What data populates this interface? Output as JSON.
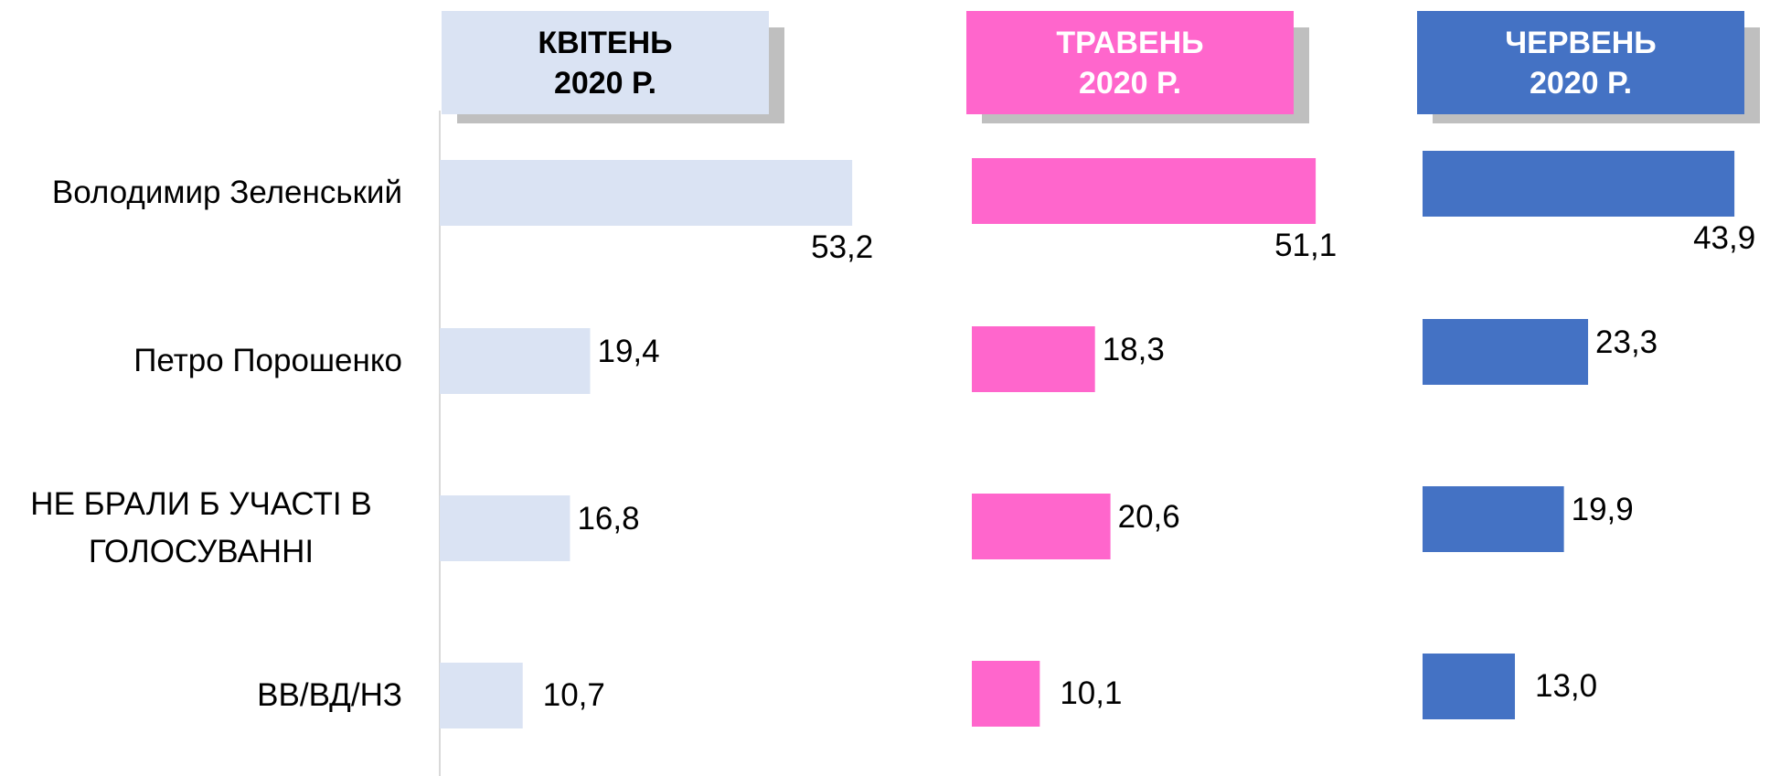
{
  "chart_data": {
    "type": "bar",
    "categories": [
      "Володимир Зеленський",
      "Петро Порошенко",
      "НЕ БРАЛИ Б УЧАСТІ В ГОЛОСУВАННІ",
      "ВВ/ВД/НЗ"
    ],
    "series": [
      {
        "name": "КВІТЕНЬ 2020 Р.",
        "color": "#dae3f3",
        "values": [
          53.2,
          19.4,
          16.8,
          10.7
        ],
        "value_labels": [
          "53,2",
          "19,4",
          "16,8",
          "10,7"
        ]
      },
      {
        "name": "ТРАВЕНЬ 2020 Р.",
        "color": "#ff66cc",
        "values": [
          51.1,
          18.3,
          20.6,
          10.1
        ],
        "value_labels": [
          "51,1",
          "18,3",
          "20,6",
          "10,1"
        ]
      },
      {
        "name": "ЧЕРВЕНЬ 2020 Р.",
        "color": "#4472c4",
        "values": [
          43.9,
          23.3,
          19.9,
          13.0
        ],
        "value_labels": [
          "43,9",
          "23,3",
          "19,9",
          "13,0"
        ]
      }
    ]
  }
}
